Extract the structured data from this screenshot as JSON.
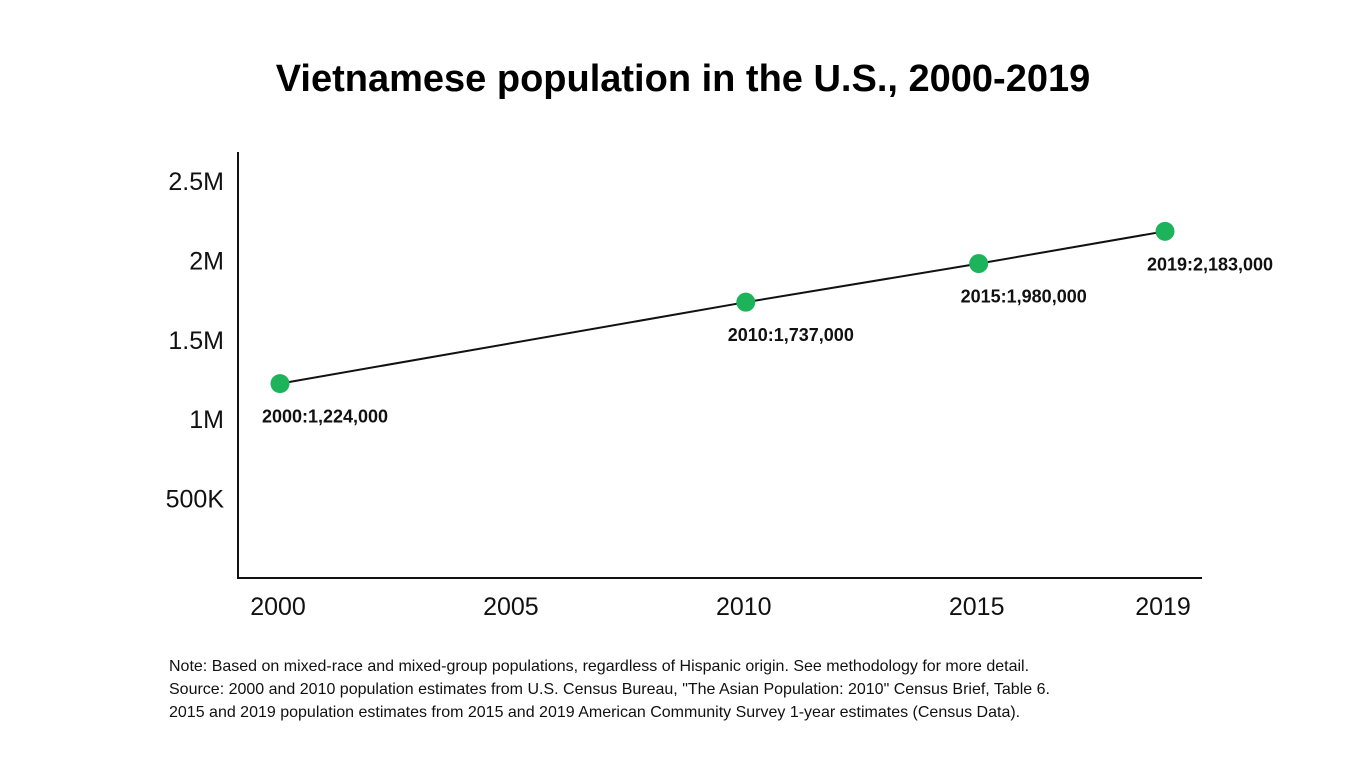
{
  "chart_data": {
    "type": "line",
    "title": "Vietnamese population in the U.S., 2000-2019",
    "xlabel": "",
    "ylabel": "",
    "x": [
      2000,
      2010,
      2015,
      2019
    ],
    "series": [
      {
        "values": [
          1224000,
          1737000,
          1980000,
          2183000
        ],
        "point_labels": [
          "2000:1,224,000",
          "2010:1,737,000",
          "2015:1,980,000",
          "2019:2,183,000"
        ]
      }
    ],
    "x_ticks": [
      2000,
      2005,
      2010,
      2015,
      2019
    ],
    "x_tick_labels": [
      "2000",
      "2005",
      "2010",
      "2015",
      "2019"
    ],
    "y_ticks": [
      500000,
      1000000,
      1500000,
      2000000,
      2500000
    ],
    "y_tick_labels": [
      "500K",
      "1M",
      "1.5M",
      "2M",
      "2.5M"
    ],
    "xlim": [
      2000,
      2019
    ],
    "ylim": [
      0,
      2600000
    ],
    "grid": false,
    "legend": "none",
    "colors": {
      "marker": "#1db35b",
      "line": "#111111",
      "axis": "#111111"
    }
  },
  "notes": [
    "Note: Based on mixed-race and mixed-group populations, regardless of Hispanic origin. See methodology for more detail.",
    "Source: 2000 and 2010 population estimates from U.S. Census Bureau, \"The Asian Population: 2010\" Census Brief, Table 6.",
    "2015 and 2019 population estimates from 2015 and 2019 American Community Survey 1-year estimates (Census Data)."
  ]
}
